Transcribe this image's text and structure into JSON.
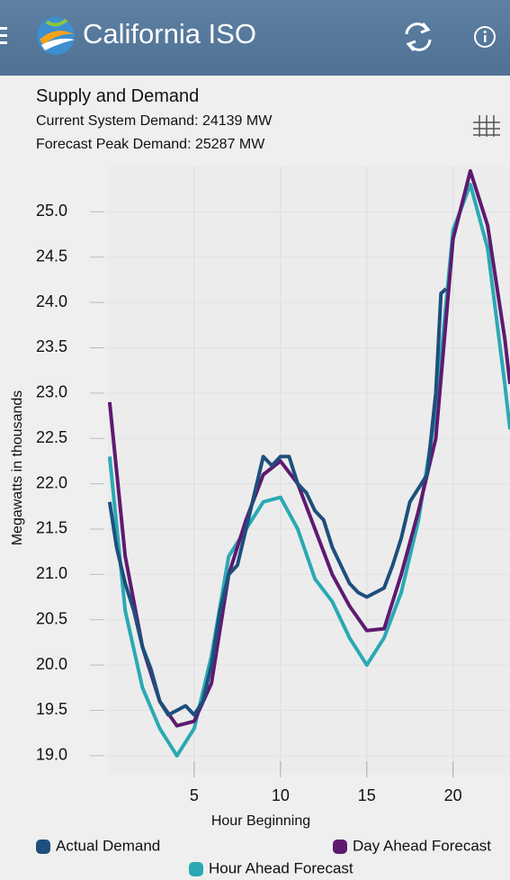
{
  "app": {
    "title": "California ISO"
  },
  "panel": {
    "title": "Supply and Demand",
    "current": "Current System Demand: 24139 MW",
    "forecast": "Forecast Peak Demand: 25287 MW"
  },
  "chart_data": {
    "type": "line",
    "xlabel": "Hour Beginning",
    "ylabel": "Megawatts in thousands",
    "xlim": [
      0,
      23.3
    ],
    "ylim": [
      18.8,
      25.5
    ],
    "xticks": [
      5,
      10,
      15,
      20
    ],
    "yticks": [
      {
        "value": 19,
        "label": "19.0"
      },
      19.5,
      {
        "value": 20,
        "label": "20.0"
      },
      20.5,
      {
        "value": 21,
        "label": "21.0"
      },
      21.5,
      {
        "value": 22,
        "label": "22.0"
      },
      22.5,
      {
        "value": 23,
        "label": "23.0"
      },
      23.5,
      {
        "value": 24,
        "label": "24.0"
      },
      24.5,
      {
        "value": 25,
        "label": "25.0"
      }
    ],
    "grid": true,
    "series": [
      {
        "name": "Actual Demand",
        "color": "#1d4f7c",
        "x": [
          0.1,
          0.5,
          1,
          1.5,
          2,
          2.5,
          3,
          3.5,
          4,
          4.5,
          5,
          5.5,
          6,
          6.5,
          7,
          7.5,
          8,
          8.5,
          9,
          9.5,
          10,
          10.5,
          11,
          11.5,
          12,
          12.5,
          13,
          13.5,
          14,
          14.5,
          15,
          15.5,
          16,
          16.5,
          17,
          17.5,
          18,
          18.5,
          19,
          19.3,
          19.6
        ],
        "values": [
          21.8,
          21.3,
          20.9,
          20.6,
          20.2,
          19.95,
          19.6,
          19.45,
          19.5,
          19.55,
          19.45,
          19.6,
          20.0,
          20.6,
          21.0,
          21.1,
          21.5,
          21.9,
          22.3,
          22.2,
          22.3,
          22.3,
          22.0,
          21.9,
          21.7,
          21.6,
          21.3,
          21.1,
          20.9,
          20.8,
          20.75,
          20.8,
          20.85,
          21.1,
          21.4,
          21.8,
          21.95,
          22.1,
          23.0,
          24.1,
          24.15
        ]
      },
      {
        "name": "Day Ahead Forecast",
        "color": "#5e1a70",
        "x": [
          0.1,
          1,
          2,
          3,
          4,
          5,
          6,
          7,
          8,
          9,
          10,
          11,
          12,
          13,
          14,
          15,
          16,
          17,
          18,
          19,
          20,
          21,
          22,
          23,
          23.3
        ],
        "values": [
          22.9,
          21.2,
          20.2,
          19.6,
          19.33,
          19.38,
          19.8,
          21.0,
          21.6,
          22.1,
          22.25,
          22.0,
          21.5,
          21.0,
          20.65,
          20.38,
          20.4,
          21.0,
          21.7,
          22.5,
          24.7,
          25.45,
          24.85,
          23.6,
          23.1
        ]
      },
      {
        "name": "Hour Ahead Forecast",
        "color": "#2aa9b4",
        "x": [
          0.1,
          1,
          2,
          3,
          4,
          5,
          6,
          7,
          8,
          9,
          10,
          11,
          12,
          13,
          14,
          15,
          16,
          17,
          18,
          19,
          20,
          21,
          22,
          23,
          23.3
        ],
        "values": [
          22.3,
          20.6,
          19.75,
          19.3,
          19.0,
          19.3,
          20.1,
          21.2,
          21.5,
          21.8,
          21.85,
          21.5,
          20.95,
          20.7,
          20.3,
          20.0,
          20.3,
          20.8,
          21.6,
          22.8,
          24.8,
          25.3,
          24.6,
          23.1,
          22.6
        ]
      }
    ]
  }
}
